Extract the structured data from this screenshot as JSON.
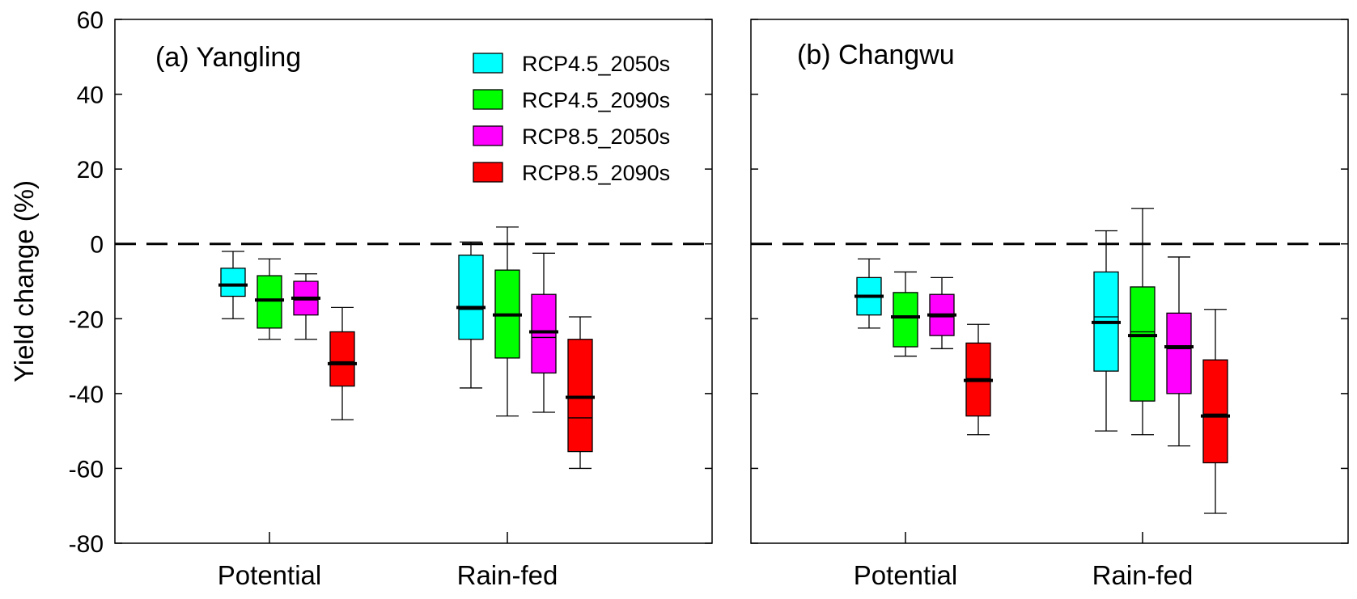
{
  "chart_data": {
    "type": "boxplot",
    "ylabel": "Yield change (%)",
    "ylim": [
      -80,
      60
    ],
    "yticks": [
      -80,
      -60,
      -40,
      -20,
      0,
      20,
      40,
      60
    ],
    "reference_line": 0,
    "categories": [
      "Potential",
      "Rain-fed"
    ],
    "legend": [
      {
        "name": "RCP4.5_2050s",
        "color": "#00FFFF"
      },
      {
        "name": "RCP4.5_2090s",
        "color": "#00FF00"
      },
      {
        "name": "RCP8.5_2050s",
        "color": "#FF00FF"
      },
      {
        "name": "RCP8.5_2090s",
        "color": "#FF0000"
      }
    ],
    "panels": [
      {
        "title": "(a) Yangling",
        "groups": [
          {
            "category": "Potential",
            "boxes": [
              {
                "series": "RCP4.5_2050s",
                "min": -20,
                "q1": -14,
                "median": -11,
                "mean": -11,
                "q3": -6.5,
                "max": -2
              },
              {
                "series": "RCP4.5_2090s",
                "min": -25.5,
                "q1": -22.5,
                "median": -15,
                "mean": -15,
                "q3": -8.5,
                "max": -4
              },
              {
                "series": "RCP8.5_2050s",
                "min": -25.5,
                "q1": -19,
                "median": -15,
                "mean": -14.5,
                "q3": -10,
                "max": -8
              },
              {
                "series": "RCP8.5_2090s",
                "min": -47,
                "q1": -38,
                "median": -31.5,
                "mean": -32,
                "q3": -23.5,
                "max": -17
              }
            ]
          },
          {
            "category": "Rain-fed",
            "boxes": [
              {
                "series": "RCP4.5_2050s",
                "min": -38.5,
                "q1": -25.5,
                "median": -17.5,
                "mean": -17,
                "q3": -3,
                "max": 0.5
              },
              {
                "series": "RCP4.5_2090s",
                "min": -46,
                "q1": -30.5,
                "median": -19,
                "mean": -19,
                "q3": -7,
                "max": 4.5
              },
              {
                "series": "RCP8.5_2050s",
                "min": -45,
                "q1": -34.5,
                "median": -25,
                "mean": -23.5,
                "q3": -13.5,
                "max": -2.5
              },
              {
                "series": "RCP8.5_2090s",
                "min": -60,
                "q1": -55.5,
                "median": -46.5,
                "mean": -41,
                "q3": -25.5,
                "max": -19.5
              }
            ]
          }
        ]
      },
      {
        "title": "(b) Changwu",
        "groups": [
          {
            "category": "Potential",
            "boxes": [
              {
                "series": "RCP4.5_2050s",
                "min": -22.5,
                "q1": -19,
                "median": -14,
                "mean": -14,
                "q3": -9,
                "max": -4
              },
              {
                "series": "RCP4.5_2090s",
                "min": -30,
                "q1": -27.5,
                "median": -19.5,
                "mean": -19.5,
                "q3": -13,
                "max": -7.5
              },
              {
                "series": "RCP8.5_2050s",
                "min": -28,
                "q1": -24.5,
                "median": -19.5,
                "mean": -19,
                "q3": -13.5,
                "max": -9
              },
              {
                "series": "RCP8.5_2090s",
                "min": -51,
                "q1": -46,
                "median": -36,
                "mean": -36.5,
                "q3": -26.5,
                "max": -21.5
              }
            ]
          },
          {
            "category": "Rain-fed",
            "boxes": [
              {
                "series": "RCP4.5_2050s",
                "min": -50,
                "q1": -34,
                "median": -19.5,
                "mean": -21,
                "q3": -7.5,
                "max": 3.5
              },
              {
                "series": "RCP4.5_2090s",
                "min": -51,
                "q1": -42,
                "median": -23.5,
                "mean": -24.5,
                "q3": -11.5,
                "max": 9.5
              },
              {
                "series": "RCP8.5_2050s",
                "min": -54,
                "q1": -40,
                "median": -28,
                "mean": -27.5,
                "q3": -18.5,
                "max": -3.5
              },
              {
                "series": "RCP8.5_2090s",
                "min": -72,
                "q1": -58.5,
                "median": -45.5,
                "mean": -46,
                "q3": -31,
                "max": -17.5
              }
            ]
          }
        ]
      }
    ]
  }
}
